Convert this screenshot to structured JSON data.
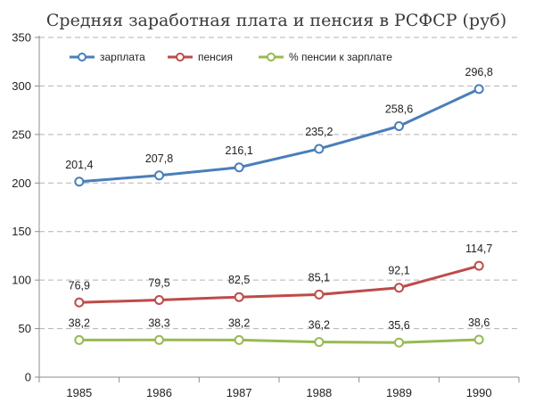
{
  "chart_data": {
    "type": "line",
    "title": "Средняя заработная плата и пенсия в РСФСР (руб)",
    "x": [
      "1985",
      "1986",
      "1987",
      "1988",
      "1989",
      "1990"
    ],
    "ylim": [
      0,
      350
    ],
    "yticks": [
      "0",
      "50",
      "100",
      "150",
      "200",
      "250",
      "300",
      "350"
    ],
    "legend_position": "top",
    "grid": "horizontal dashed",
    "series": [
      {
        "name": "зарплата",
        "color": "#4a7ebb",
        "values": [
          201.4,
          207.8,
          216.1,
          235.2,
          258.6,
          296.8
        ],
        "labels": [
          "201,4",
          "207,8",
          "216,1",
          "235,2",
          "258,6",
          "296,8"
        ]
      },
      {
        "name": "пенсия",
        "color": "#be4b48",
        "values": [
          76.9,
          79.5,
          82.5,
          85.1,
          92.1,
          114.7
        ],
        "labels": [
          "76,9",
          "79,5",
          "82,5",
          "85,1",
          "92,1",
          "114,7"
        ]
      },
      {
        "name": "% пенсии к зарплате",
        "color": "#98b954",
        "values": [
          38.2,
          38.3,
          38.2,
          36.2,
          35.6,
          38.6
        ],
        "labels": [
          "38,2",
          "38,3",
          "38,2",
          "36,2",
          "35,6",
          "38,6"
        ]
      }
    ]
  }
}
